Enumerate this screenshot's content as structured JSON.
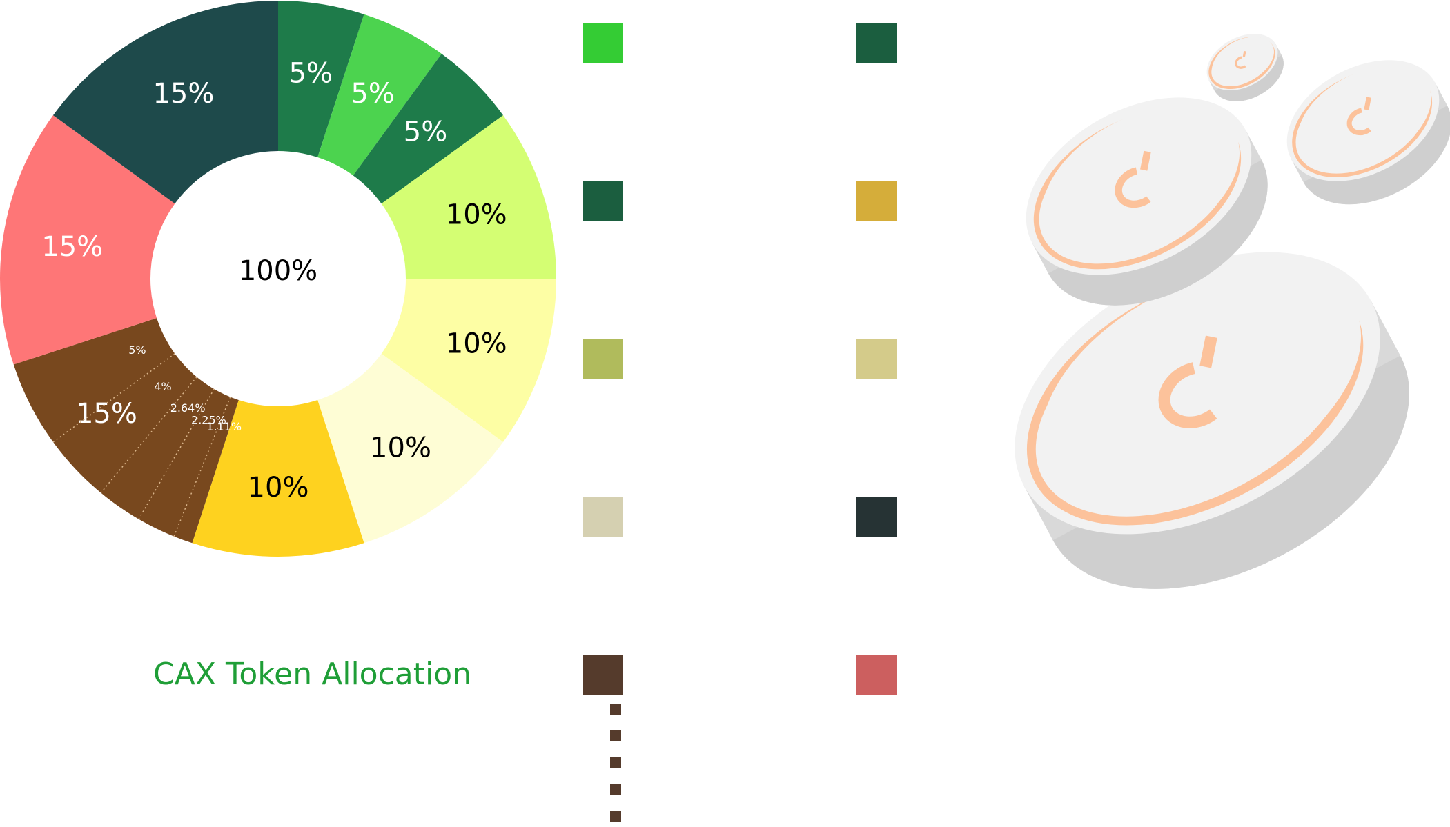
{
  "chart_data": {
    "type": "pie",
    "variant": "donut",
    "title": "CAX Token Allocation",
    "center_label": "100%",
    "slices": [
      {
        "label": "5%",
        "value": 5,
        "color": "#1e7b4a",
        "label_color": "#ffffff"
      },
      {
        "label": "5%",
        "value": 5,
        "color": "#4cd34f",
        "label_color": "#ffffff"
      },
      {
        "label": "5%",
        "value": 5,
        "color": "#1e7b4a",
        "label_color": "#ffffff"
      },
      {
        "label": "10%",
        "value": 10,
        "color": "#d4fe73",
        "label_color": "#000000"
      },
      {
        "label": "10%",
        "value": 10,
        "color": "#fdfea4",
        "label_color": "#000000"
      },
      {
        "label": "10%",
        "value": 10,
        "color": "#fefdd5",
        "label_color": "#000000"
      },
      {
        "label": "10%",
        "value": 10,
        "color": "#fed21f",
        "label_color": "#000000"
      },
      {
        "label": "15%",
        "value": 15,
        "color": "#78481e",
        "label_color": "#ffffff",
        "sub_slices": [
          {
            "label": "1.11%",
            "value": 1.11
          },
          {
            "label": "2.25%",
            "value": 2.25
          },
          {
            "label": "2.64%",
            "value": 2.64
          },
          {
            "label": "4%",
            "value": 4
          },
          {
            "label": "5%",
            "value": 5
          }
        ]
      },
      {
        "label": "15%",
        "value": 15,
        "color": "#fe7677",
        "label_color": "#ffffff"
      },
      {
        "label": "15%",
        "value": 15,
        "color": "#1e4a4b",
        "label_color": "#ffffff"
      }
    ],
    "legend": {
      "placement": "right",
      "left_column": [
        "#34cc34",
        "#1b5e3f",
        "#b0bb5c",
        "#d5d0b1",
        "#553b2c"
      ],
      "right_column": [
        "#1b5e3f",
        "#d5ad3a",
        "#d4cb8a",
        "#263334",
        "#cc5f5f"
      ]
    }
  },
  "decor": {
    "coins_icon": "coins-illustration-icon",
    "coin_ring_color": "#fcc29b",
    "coin_face_color": "#f2f2f2",
    "coin_rim_color": "#d9d9d9"
  }
}
